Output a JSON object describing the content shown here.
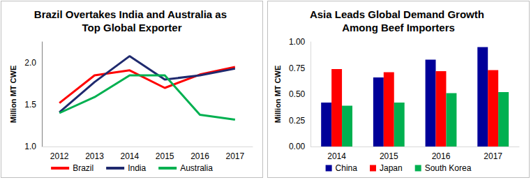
{
  "chart_data": [
    {
      "type": "line",
      "title": "Brazil Overtakes India and Australia as Top Global Exporter",
      "y_label": "Million MT CWE",
      "categories": [
        "2012",
        "2013",
        "2014",
        "2015",
        "2016",
        "2017"
      ],
      "series": [
        {
          "name": "Brazil",
          "color": "#ff0000",
          "values": [
            1.52,
            1.85,
            1.91,
            1.7,
            1.86,
            1.95
          ]
        },
        {
          "name": "India",
          "color": "#1f2a6e",
          "values": [
            1.41,
            1.77,
            2.08,
            1.8,
            1.85,
            1.93
          ]
        },
        {
          "name": "Australia",
          "color": "#00b050",
          "values": [
            1.4,
            1.59,
            1.85,
            1.85,
            1.38,
            1.32
          ]
        }
      ],
      "ylim": [
        1.0,
        2.25
      ],
      "yticks": [
        {
          "value": 1,
          "label": "1.0"
        },
        {
          "value": 1.5,
          "label": "1.5"
        },
        {
          "value": 2,
          "label": "2.0"
        }
      ],
      "grid": false,
      "legend": "bottom"
    },
    {
      "type": "bar",
      "title": "Asia Leads Global Demand Growth Among Beef Importers",
      "y_label": "Million MT CWE",
      "categories": [
        "2014",
        "2015",
        "2016",
        "2017"
      ],
      "series": [
        {
          "name": "China",
          "color": "#000099",
          "values": [
            0.42,
            0.66,
            0.83,
            0.95
          ]
        },
        {
          "name": "Japan",
          "color": "#ff0000",
          "values": [
            0.74,
            0.71,
            0.72,
            0.73
          ]
        },
        {
          "name": "South Korea",
          "color": "#00b050",
          "values": [
            0.39,
            0.42,
            0.51,
            0.52
          ]
        }
      ],
      "ylim": [
        0,
        1
      ],
      "yticks": [
        {
          "value": 0,
          "label": "0.00"
        },
        {
          "value": 0.25,
          "label": "0.25"
        },
        {
          "value": 0.5,
          "label": "0.50"
        },
        {
          "value": 0.75,
          "label": "0.75"
        },
        {
          "value": 1,
          "label": "1.00"
        }
      ],
      "grid": false,
      "legend": "bottom"
    }
  ]
}
